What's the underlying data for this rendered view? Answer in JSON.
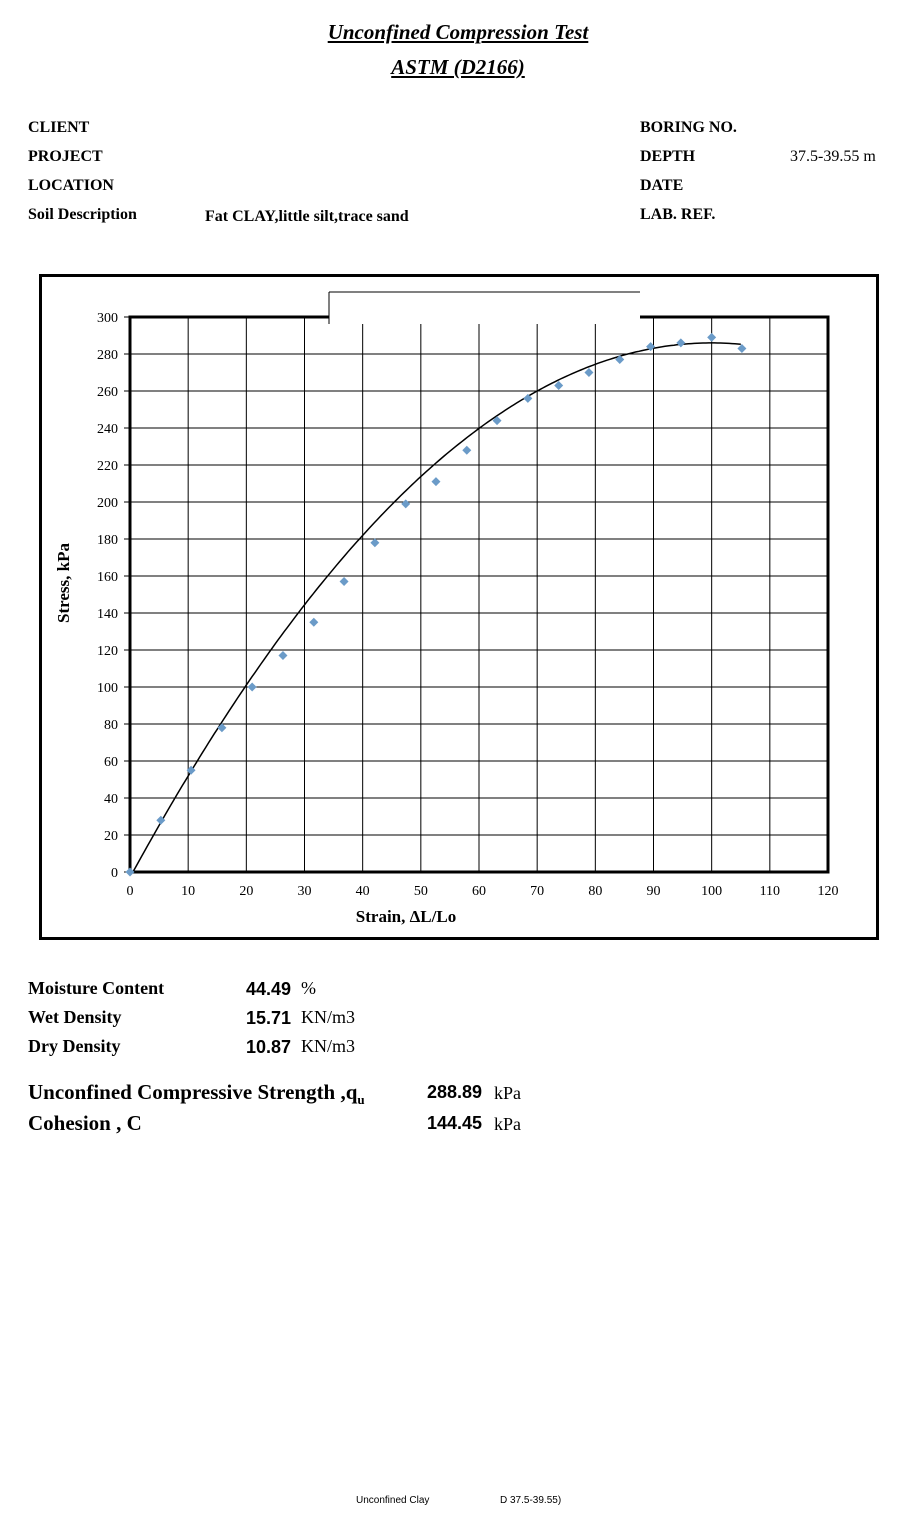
{
  "title": "Unconfined Compression Test",
  "subtitle": "ASTM (D2166)",
  "header": {
    "client_label": "CLIENT",
    "project_label": "PROJECT",
    "location_label": "LOCATION",
    "soil_label": "Soil Description",
    "soil_value": "Fat CLAY,little silt,trace sand",
    "boring_label": "BORING NO.",
    "depth_label": "DEPTH",
    "depth_value": "37.5-39.55 m",
    "date_label": "DATE",
    "labref_label": "LAB. REF."
  },
  "chart_data": {
    "type": "scatter",
    "xlabel": "Strain, ΔL/Lo",
    "ylabel": "Stress, kPa",
    "xlim": [
      0,
      120
    ],
    "ylim": [
      0,
      300
    ],
    "xticks": [
      0,
      10,
      20,
      30,
      40,
      50,
      60,
      70,
      80,
      90,
      100,
      110,
      120
    ],
    "yticks": [
      0,
      20,
      40,
      60,
      80,
      100,
      120,
      140,
      160,
      180,
      200,
      220,
      240,
      260,
      280,
      300
    ],
    "grid": true,
    "points": {
      "x": [
        0,
        5.3,
        10.5,
        15.8,
        21.0,
        26.3,
        31.6,
        36.8,
        42.1,
        47.4,
        52.6,
        57.9,
        63.1,
        68.4,
        73.7,
        78.9,
        84.2,
        89.5,
        94.7,
        100.0,
        105.2
      ],
      "y": [
        0,
        28,
        55,
        78,
        100,
        117,
        135,
        157,
        178,
        199,
        211,
        228,
        244,
        256,
        263,
        270,
        277,
        284,
        286,
        289,
        283
      ]
    },
    "trendline": {
      "type": "polynomial",
      "coeffs": [
        -0.0289,
        5.78,
        -3
      ]
    },
    "marker_color": "#6b9bc8",
    "line_color": "#000000"
  },
  "properties": [
    {
      "label": "Moisture Content",
      "value": "44.49",
      "unit": "%"
    },
    {
      "label": "Wet Density",
      "value": "15.71",
      "unit": "KN/m3"
    },
    {
      "label": "Dry Density",
      "value": "10.87",
      "unit": "KN/m3"
    }
  ],
  "results": {
    "qu_label": "Unconfined Compressive Strength ,q",
    "qu_sub": "u",
    "qu_value": "288.89",
    "qu_unit": "kPa",
    "c_label": "Cohesion , C",
    "c_value": "144.45",
    "c_unit": "kPa"
  },
  "footer": {
    "left": "Unconfined Clay",
    "right": "D 37.5-39.55)"
  }
}
